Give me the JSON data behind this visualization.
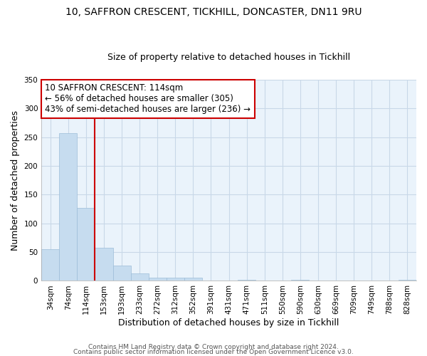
{
  "title1": "10, SAFFRON CRESCENT, TICKHILL, DONCASTER, DN11 9RU",
  "title2": "Size of property relative to detached houses in Tickhill",
  "xlabel": "Distribution of detached houses by size in Tickhill",
  "ylabel": "Number of detached properties",
  "footer1": "Contains HM Land Registry data © Crown copyright and database right 2024.",
  "footer2": "Contains public sector information licensed under the Open Government Licence v3.0.",
  "bin_labels": [
    "34sqm",
    "74sqm",
    "114sqm",
    "153sqm",
    "193sqm",
    "233sqm",
    "272sqm",
    "312sqm",
    "352sqm",
    "391sqm",
    "431sqm",
    "471sqm",
    "511sqm",
    "550sqm",
    "590sqm",
    "630sqm",
    "669sqm",
    "709sqm",
    "749sqm",
    "788sqm",
    "828sqm"
  ],
  "bar_heights": [
    55,
    257,
    127,
    58,
    27,
    13,
    5,
    5,
    5,
    1,
    0,
    2,
    0,
    0,
    2,
    0,
    0,
    0,
    0,
    0,
    2
  ],
  "bar_color": "#c6dcef",
  "bar_edge_color": "#9dbdd8",
  "highlight_line_color": "#cc0000",
  "annotation_title": "10 SAFFRON CRESCENT: 114sqm",
  "annotation_line1": "← 56% of detached houses are smaller (305)",
  "annotation_line2": "43% of semi-detached houses are larger (236) →",
  "annotation_box_facecolor": "white",
  "annotation_box_edgecolor": "#cc0000",
  "ylim": [
    0,
    350
  ],
  "yticks": [
    0,
    50,
    100,
    150,
    200,
    250,
    300,
    350
  ],
  "bg_color": "#ffffff",
  "plot_bg_color": "#eaf3fb",
  "grid_color": "#c8d8e8",
  "title1_fontsize": 10,
  "title2_fontsize": 9,
  "axis_label_fontsize": 9,
  "tick_fontsize": 7.5,
  "annotation_fontsize": 8.5,
  "footer_fontsize": 6.5
}
